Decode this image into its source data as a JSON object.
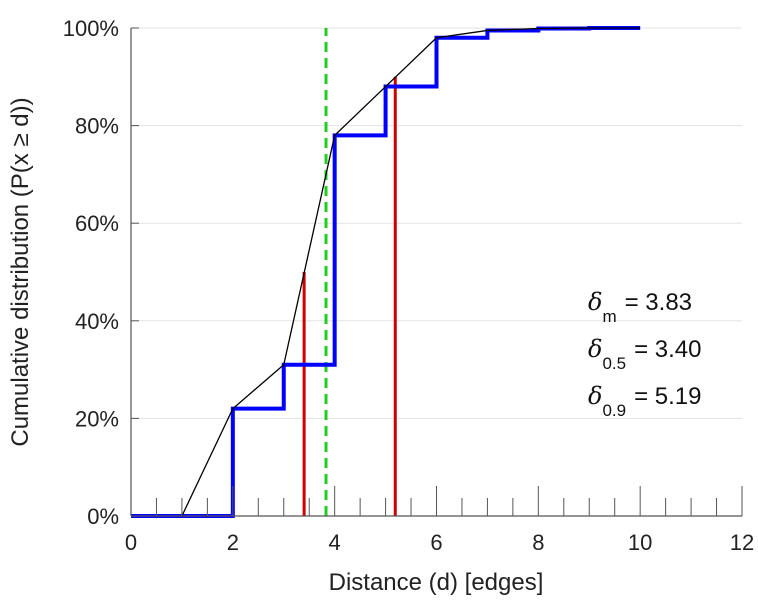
{
  "chart_data": {
    "type": "line",
    "xlabel": "Distance (d) [edges]",
    "ylabel": "Cumulative distribution (P(x ≥ d))",
    "xlim": [
      0,
      12
    ],
    "ylim": [
      0,
      100
    ],
    "x_ticks": [
      0,
      2,
      4,
      6,
      8,
      10,
      12
    ],
    "x_tick_labels": [
      "0",
      "2",
      "4",
      "6",
      "8",
      "10",
      "12"
    ],
    "y_ticks": [
      0,
      20,
      40,
      60,
      80,
      100
    ],
    "y_tick_labels": [
      "0%",
      "20%",
      "40%",
      "60%",
      "80%",
      "100%"
    ],
    "grid": "horizontal",
    "series": [
      {
        "style": "step",
        "color": "#0000ff",
        "x": [
          0,
          1,
          2,
          3,
          4,
          5,
          6,
          7,
          8,
          9,
          10
        ],
        "y": [
          0,
          0,
          22,
          31,
          78,
          88,
          98,
          99.5,
          99.9,
          100,
          100
        ]
      },
      {
        "style": "line",
        "color": "#000000",
        "x": [
          1,
          2,
          3,
          4,
          5,
          6,
          7,
          8,
          9,
          10
        ],
        "y": [
          0,
          22,
          31,
          78,
          88,
          98,
          99.5,
          99.9,
          100,
          100
        ]
      }
    ],
    "markers": [
      {
        "x": 3.4,
        "y_top": 50,
        "color": "#cc0000",
        "style": "solid"
      },
      {
        "x": 5.19,
        "y_top": 90,
        "color": "#cc0000",
        "style": "solid"
      },
      {
        "x": 3.83,
        "y_top": 100,
        "color": "#22cc22",
        "style": "dashed"
      }
    ],
    "annotations": [
      {
        "symbol": "δ",
        "sub": "m",
        "text": "= 3.83"
      },
      {
        "symbol": "δ",
        "sub": "0.5",
        "text": "= 3.40"
      },
      {
        "symbol": "δ",
        "sub": "0.9",
        "text": "= 5.19"
      }
    ]
  }
}
